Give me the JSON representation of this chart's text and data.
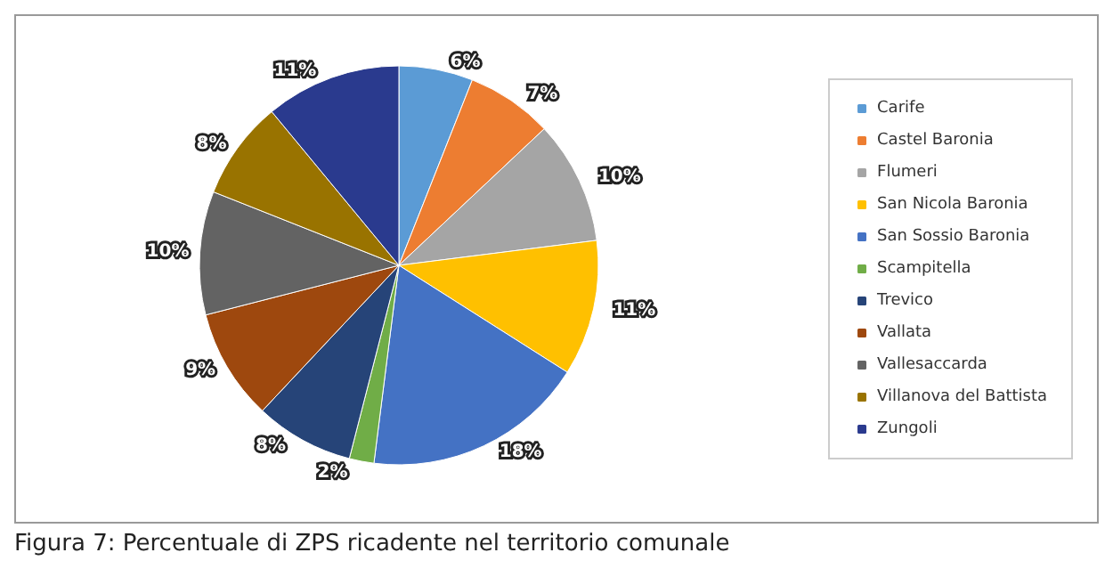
{
  "chart_data": {
    "type": "pie",
    "categories": [
      "Carife",
      "Castel Baronia",
      "Flumeri",
      "San Nicola Baronia",
      "San Sossio Baronia",
      "Scampitella",
      "Trevico",
      "Vallata",
      "Vallesaccarda",
      "Villanova del Battista",
      "Zungoli"
    ],
    "values": [
      6,
      7,
      10,
      11,
      18,
      2,
      8,
      9,
      10,
      8,
      11
    ],
    "colors": [
      "#5b9bd5",
      "#ed7d31",
      "#a5a5a5",
      "#ffc000",
      "#4472c4",
      "#70ad47",
      "#264478",
      "#9e480e",
      "#636363",
      "#997300",
      "#2a3a8e"
    ],
    "value_labels": [
      "6%",
      "7%",
      "10%",
      "11%",
      "18%",
      "2%",
      "8%",
      "9%",
      "10%",
      "8%",
      "11%"
    ],
    "legend": "right",
    "annotations": [
      "Figura 7: Percentuale di ZPS ricadente nel territorio comunale"
    ]
  }
}
